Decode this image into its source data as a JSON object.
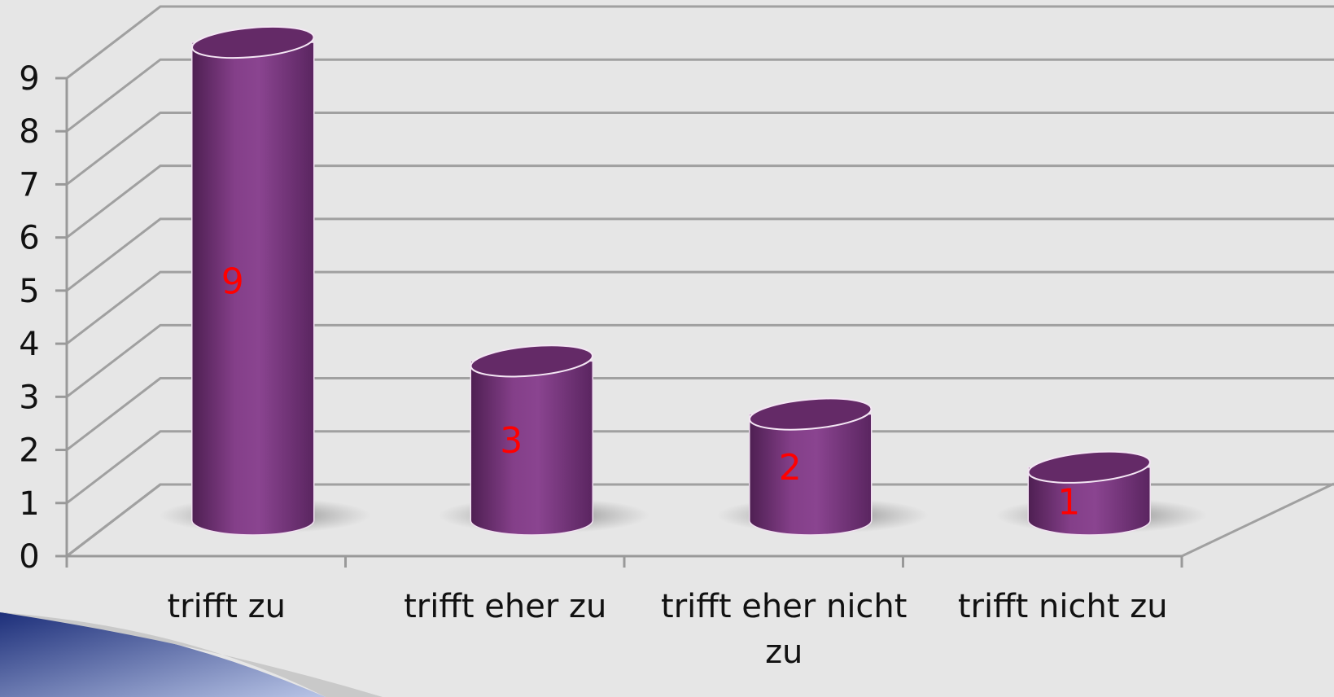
{
  "chart_data": {
    "type": "bar",
    "categories": [
      "trifft zu",
      "trifft eher zu",
      "trifft eher nicht zu",
      "trifft nicht zu"
    ],
    "values": [
      9,
      3,
      2,
      1
    ],
    "color": "#7d3a82",
    "label_color": "#ff0000",
    "ylim": [
      0,
      9
    ],
    "yticks": [
      0,
      1,
      2,
      3,
      4,
      5,
      6,
      7,
      8,
      9
    ],
    "grid": true
  }
}
